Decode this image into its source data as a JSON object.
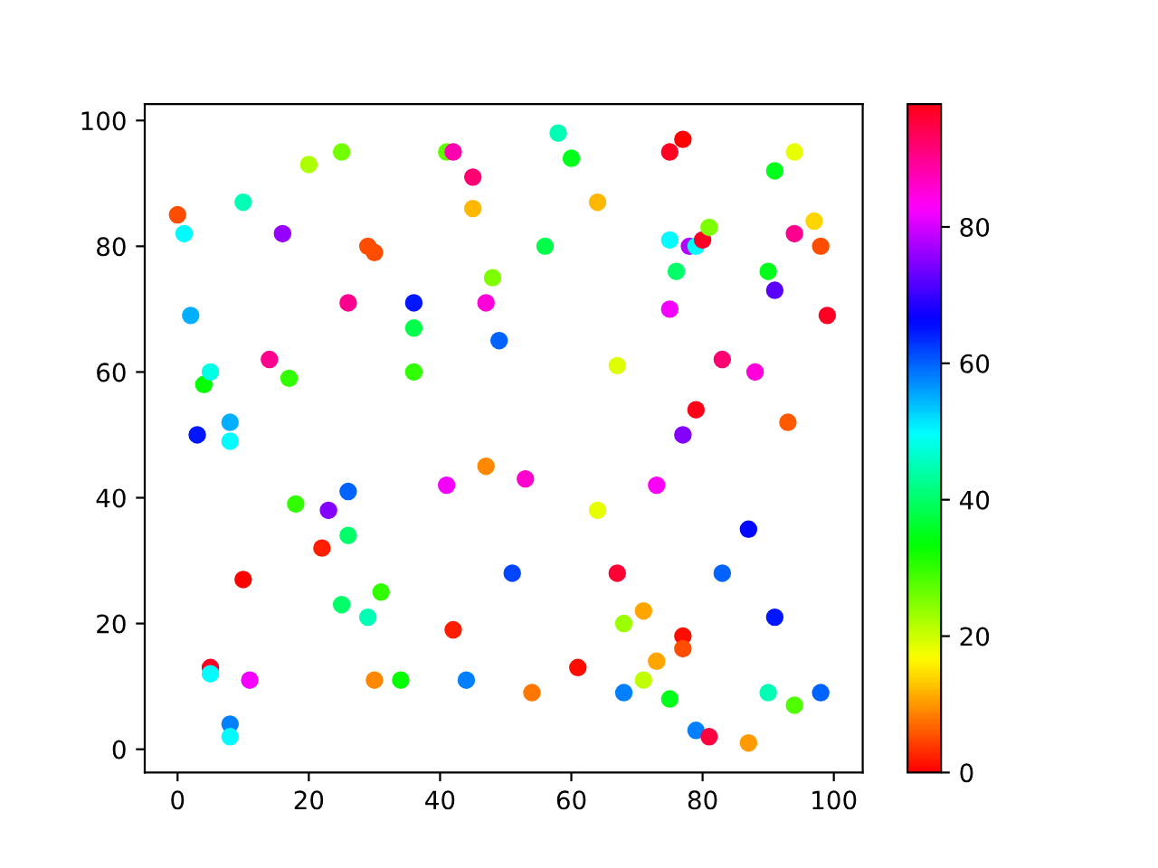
{
  "chart_data": {
    "type": "scatter",
    "x": [
      0,
      1,
      2,
      3,
      4,
      5,
      5,
      5,
      8,
      8,
      8,
      8,
      10,
      10,
      11,
      14,
      16,
      17,
      18,
      20,
      22,
      23,
      25,
      25,
      26,
      26,
      26,
      29,
      30,
      29,
      30,
      31,
      34,
      36,
      36,
      36,
      41,
      42,
      41,
      42,
      44,
      45,
      45,
      47,
      47,
      48,
      49,
      51,
      53,
      54,
      56,
      58,
      60,
      61,
      64,
      64,
      67,
      67,
      68,
      68,
      71,
      71,
      73,
      73,
      75,
      77,
      75,
      75,
      75,
      76,
      77,
      77,
      77,
      78,
      79,
      79,
      79,
      80,
      81,
      81,
      83,
      83,
      87,
      87,
      88,
      90,
      90,
      91,
      91,
      91,
      93,
      94,
      94,
      94,
      97,
      98,
      98,
      99
    ],
    "values": [
      85,
      82,
      69,
      50,
      58,
      60,
      13,
      12,
      52,
      49,
      4,
      2,
      87,
      27,
      11,
      62,
      82,
      59,
      39,
      93,
      32,
      38,
      95,
      23,
      71,
      41,
      34,
      80,
      79,
      21,
      11,
      25,
      11,
      71,
      67,
      60,
      95,
      95,
      42,
      19,
      11,
      91,
      86,
      71,
      45,
      75,
      65,
      28,
      43,
      9,
      80,
      98,
      94,
      13,
      87,
      38,
      28,
      61,
      20,
      9,
      22,
      11,
      42,
      14,
      95,
      97,
      81,
      70,
      8,
      76,
      50,
      18,
      16,
      80,
      80,
      54,
      3,
      81,
      83,
      2,
      62,
      28,
      35,
      1,
      60,
      76,
      9,
      92,
      73,
      21,
      52,
      95,
      82,
      7,
      84,
      80,
      9,
      69
    ],
    "cvalues": [
      5,
      50,
      55,
      65,
      33,
      48,
      97,
      50,
      55,
      50,
      58,
      50,
      45,
      0,
      82,
      90,
      76,
      30,
      30,
      22,
      2,
      75,
      26,
      40,
      90,
      60,
      40,
      5,
      5,
      45,
      9,
      30,
      33,
      65,
      38,
      30,
      27,
      88,
      82,
      2,
      58,
      92,
      12,
      85,
      9,
      25,
      60,
      62,
      86,
      8,
      38,
      45,
      35,
      1,
      12,
      18,
      96,
      19,
      23,
      58,
      11,
      21,
      83,
      11,
      97,
      0,
      50,
      82,
      35,
      40,
      75,
      1,
      5,
      78,
      50,
      98,
      58,
      97,
      25,
      95,
      92,
      60,
      66,
      10,
      85,
      35,
      45,
      35,
      72,
      65,
      6,
      18,
      90,
      28,
      14,
      5,
      60,
      97
    ],
    "xlim": [
      -5,
      104.4
    ],
    "ylim": [
      -3.7,
      102.6
    ],
    "xticks": [
      0,
      20,
      40,
      60,
      80,
      100
    ],
    "yticks": [
      0,
      20,
      40,
      60,
      80,
      100
    ],
    "clim": [
      0,
      98
    ],
    "cticks": [
      0,
      20,
      40,
      60,
      80
    ],
    "marker": "circle",
    "grid": false,
    "legend": false
  }
}
